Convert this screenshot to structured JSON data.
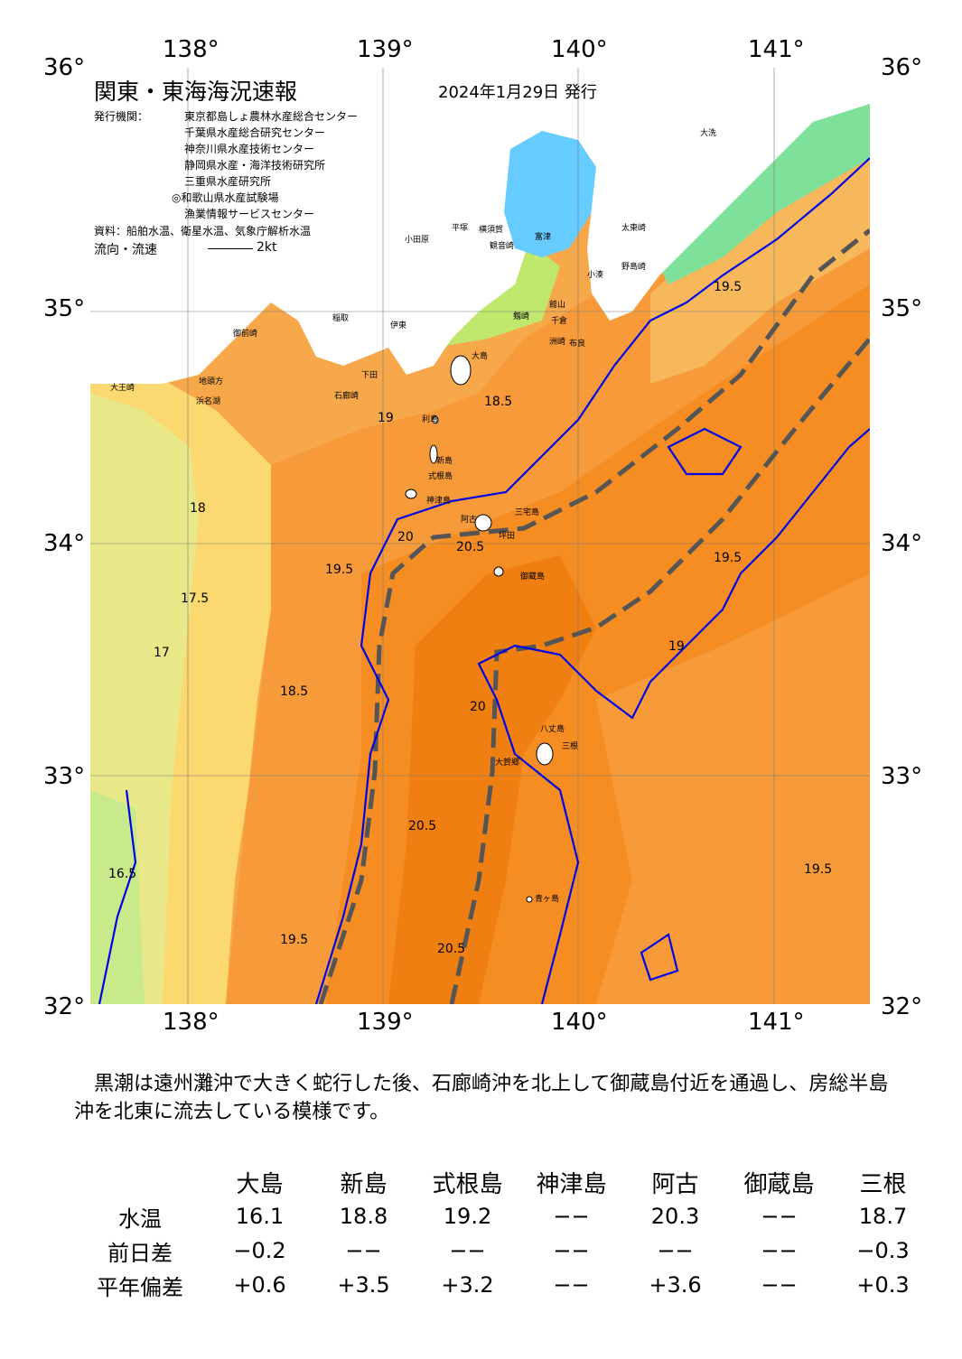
{
  "map": {
    "title": "関東・東海海況速報",
    "date": "2024年1月29日 発行",
    "issuer_label": "発行機関：",
    "issuers": [
      "東京都島しょ農林水産総合センター",
      "千葉県水産総合研究センター",
      "神奈川県水産技術センター",
      "静岡県水産・海洋技術研究所",
      "三重県水産研究所",
      "◎和歌山県水産試験場",
      "漁業情報サービスセンター"
    ],
    "source": "資料：船舶水温、衛星水温、気象庁解析水温",
    "flow_label": "流向・流速",
    "flow_scale": "2kt",
    "lon_labels": [
      "138°",
      "139°",
      "140°",
      "141°"
    ],
    "lat_labels": [
      "36°",
      "35°",
      "34°",
      "33°",
      "32°"
    ],
    "places": [
      "大洗",
      "太東崎",
      "小湊",
      "野島崎",
      "館山",
      "千倉",
      "洲崎",
      "剱崎",
      "小田原",
      "平塚",
      "横須賀",
      "観音崎",
      "富津",
      "布良",
      "伊東",
      "稲取",
      "下田",
      "石廊崎",
      "御前崎",
      "大王崎",
      "地頭方",
      "浜名湖",
      "大島",
      "利島",
      "新島",
      "式根島",
      "神津島",
      "三宅島",
      "阿古",
      "坪田",
      "御蔵島",
      "八丈島",
      "三根",
      "大賀郷",
      "青ヶ島"
    ],
    "isotherms": [
      "16.5",
      "17",
      "17.5",
      "18",
      "18.5",
      "19",
      "19.5",
      "20",
      "20.5"
    ],
    "colors": {
      "kuroshio": "#0000e6",
      "axis": "#555555",
      "land": "#ffffff",
      "bay": "#66ccff"
    }
  },
  "summary": "黒潮は遠州灘沖で大きく蛇行した後、石廊崎沖を北上して御蔵島付近を通過し、房総半島沖を北東に流去している模様です。",
  "table": {
    "columns": [
      "大島",
      "新島",
      "式根島",
      "神津島",
      "阿古",
      "御蔵島",
      "三根"
    ],
    "rows": [
      {
        "label": "水温",
        "values": [
          "16.1",
          "18.8",
          "19.2",
          "−−",
          "20.3",
          "−−",
          "18.7"
        ]
      },
      {
        "label": "前日差",
        "values": [
          "−0.2",
          "−−",
          "−−",
          "−−",
          "−−",
          "−−",
          "−0.3"
        ]
      },
      {
        "label": "平年偏差",
        "values": [
          "+0.6",
          "+3.5",
          "+3.2",
          "−−",
          "+3.6",
          "−−",
          "+0.3"
        ]
      }
    ]
  }
}
